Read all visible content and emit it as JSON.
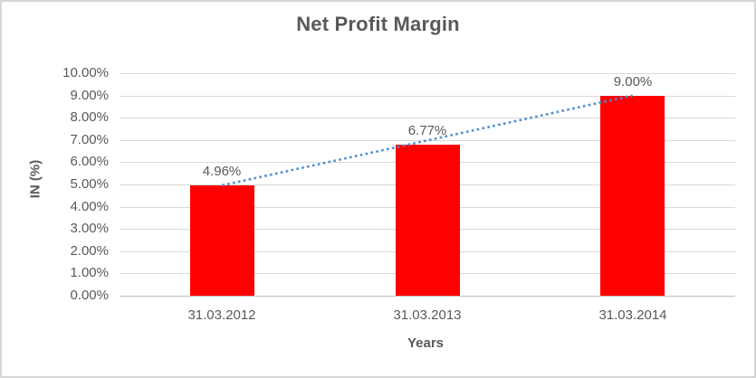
{
  "chart_data": {
    "type": "bar",
    "title": "Net Profit Margin",
    "xlabel": "Years",
    "ylabel": "IN (%)",
    "categories": [
      "31.03.2012",
      "31.03.2013",
      "31.03.2014"
    ],
    "values": [
      4.96,
      6.77,
      9.0
    ],
    "data_labels": [
      "4.96%",
      "6.77%",
      "9.00%"
    ],
    "y_tick_labels": [
      "0.00%",
      "1.00%",
      "2.00%",
      "3.00%",
      "4.00%",
      "5.00%",
      "6.00%",
      "7.00%",
      "8.00%",
      "9.00%",
      "10.00%"
    ],
    "ylim": [
      0,
      10
    ],
    "y_step": 1,
    "grid": true,
    "legend": "none",
    "bar_color": "#ff0000",
    "trendline": {
      "type": "linear",
      "style": "dotted",
      "color": "#4e8fd1",
      "start_value": 4.96,
      "end_value": 9.0
    },
    "colors": {
      "text": "#595959",
      "gridline": "#d9d9d9",
      "axis_line": "#bfbfbf",
      "border": "#d5d5d8",
      "background": "#ffffff"
    }
  }
}
